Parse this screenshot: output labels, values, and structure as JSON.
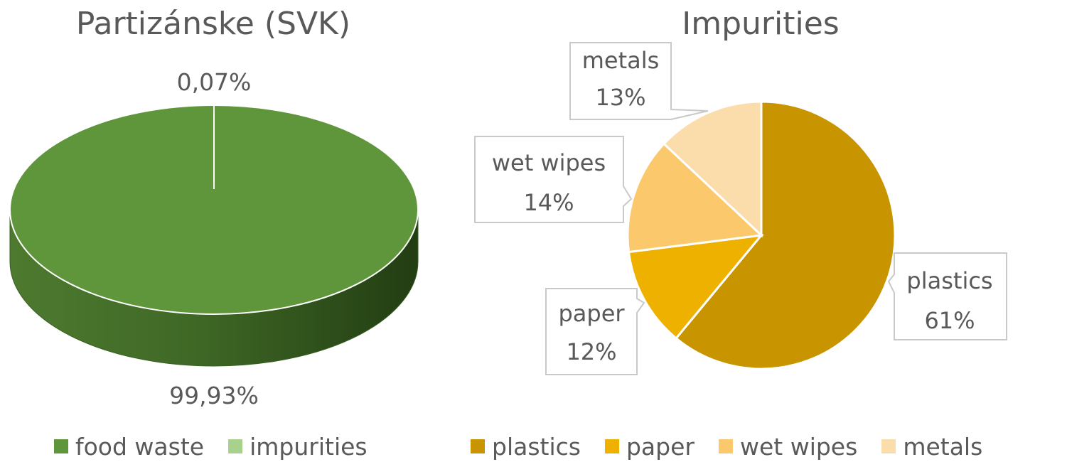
{
  "chart_data": [
    {
      "type": "pie",
      "style": "3d",
      "title": "Partizánske (SVK)",
      "series": [
        {
          "name": "food waste",
          "value": 99.93,
          "label": "99,93%",
          "color": "#5f963b"
        },
        {
          "name": "impurities",
          "value": 0.07,
          "label": "0,07%",
          "color": "#a9d18e"
        }
      ],
      "legend_position": "bottom"
    },
    {
      "type": "pie",
      "title": "Impurities",
      "series": [
        {
          "name": "plastics",
          "value": 61,
          "label": "61%",
          "color": "#c89400"
        },
        {
          "name": "paper",
          "value": 12,
          "label": "12%",
          "color": "#eeb100"
        },
        {
          "name": "wet wipes",
          "value": 14,
          "label": "14%",
          "color": "#fbc96c"
        },
        {
          "name": "metals",
          "value": 13,
          "label": "13%",
          "color": "#fbdcab"
        }
      ],
      "legend_position": "bottom"
    }
  ]
}
